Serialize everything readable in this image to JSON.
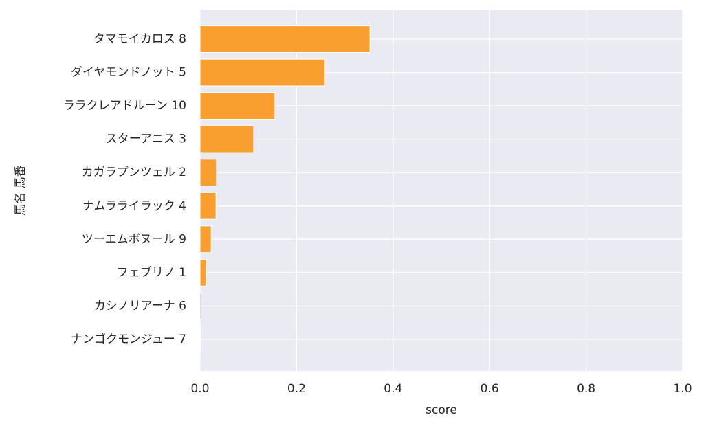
{
  "chart_data": {
    "type": "barh",
    "categories": [
      "タマモイカロス 8",
      "ダイヤモンドノット 5",
      "ララクレアドルーン 10",
      "スターアニス 3",
      "カガラプンツェル 2",
      "ナムラライラック 4",
      "ツーエムボヌール 9",
      "フェブリノ 1",
      "カシノリアーナ 6",
      "ナンゴクモンジュー 7"
    ],
    "values": [
      0.352,
      0.259,
      0.155,
      0.111,
      0.034,
      0.033,
      0.023,
      0.013,
      0.002,
      0.001
    ],
    "color": "#f99f30",
    "xlabel": "score",
    "ylabel": "馬名 馬番",
    "xlim": [
      0,
      1
    ],
    "xticks": [
      {
        "value": 0,
        "label": "0.0"
      },
      0.2,
      0.4,
      0.6,
      0.8,
      {
        "value": 1,
        "label": "1.0"
      }
    ],
    "grid": true
  }
}
